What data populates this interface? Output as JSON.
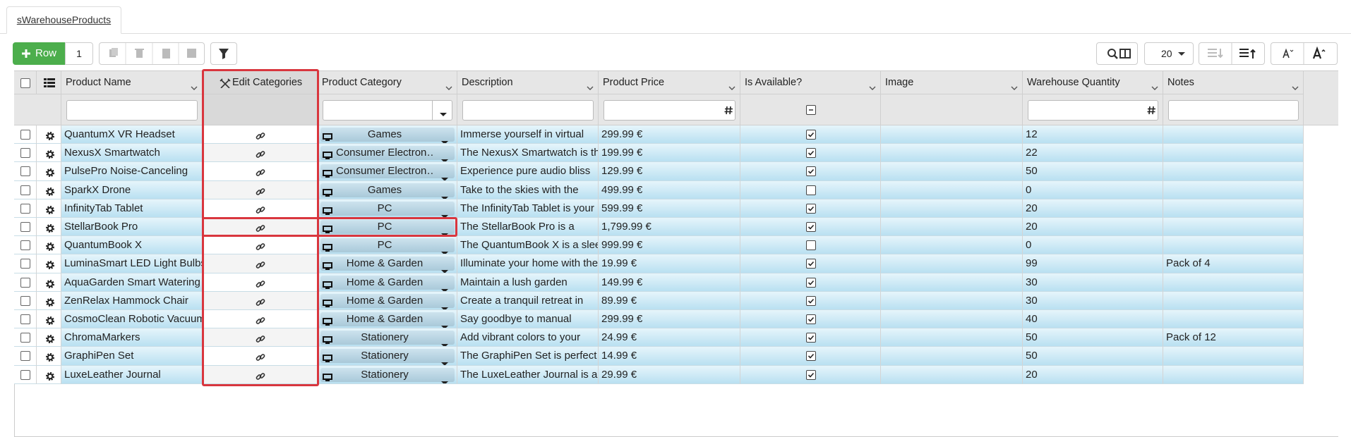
{
  "tab": "sWarehouseProducts",
  "toolbar": {
    "add_row": "Row",
    "row_count": 1,
    "page_size": 20
  },
  "columns": [
    "Product Name",
    "Edit Categories",
    "Product Category",
    "Description",
    "Product Price",
    "Is Available?",
    "Image",
    "Warehouse Quantity",
    "Notes"
  ],
  "rows": [
    {
      "name": "QuantumX VR Headset",
      "category": "Games",
      "description": "Immerse yourself in virtual",
      "price": "299.99 €",
      "available": true,
      "quantity": 12
    },
    {
      "name": "NexusX Smartwatch",
      "category": "Consumer Electron…",
      "description": "The NexusX Smartwatch is the",
      "price": "199.99 €",
      "available": true,
      "quantity": 22
    },
    {
      "name": "PulsePro Noise-Canceling",
      "category": "Consumer Electron…",
      "description": "Experience pure audio bliss",
      "price": "129.99 €",
      "available": true,
      "quantity": 50
    },
    {
      "name": "SparkX Drone",
      "category": "Games",
      "description": "Take to the skies with the",
      "price": "499.99 €",
      "available": false,
      "quantity": 0
    },
    {
      "name": "InfinityTab Tablet",
      "category": "PC",
      "description": "The InfinityTab Tablet is your",
      "price": "599.99 €",
      "available": true,
      "quantity": 20
    },
    {
      "name": "StellarBook Pro",
      "category": "PC",
      "description": "The StellarBook Pro is a",
      "price": "1,799.99 €",
      "available": true,
      "quantity": 20
    },
    {
      "name": "QuantumBook X",
      "category": "PC",
      "description": "The QuantumBook X is a sleek",
      "price": "999.99 €",
      "available": false,
      "quantity": 0
    },
    {
      "name": "LuminaSmart LED Light Bulbs",
      "category": "Home & Garden",
      "description": "Illuminate your home with the",
      "price": "19.99 €",
      "available": true,
      "quantity": 99,
      "notes": "Pack of 4"
    },
    {
      "name": "AquaGarden Smart Watering",
      "category": "Home & Garden",
      "description": "Maintain a lush garden",
      "price": "149.99 €",
      "available": true,
      "quantity": 30
    },
    {
      "name": "ZenRelax Hammock Chair",
      "category": "Home & Garden",
      "description": "Create a tranquil retreat in",
      "price": "89.99 €",
      "available": true,
      "quantity": 30
    },
    {
      "name": "CosmoClean Robotic Vacuum",
      "category": "Home & Garden",
      "description": "Say goodbye to manual",
      "price": "299.99 €",
      "available": true,
      "quantity": 40
    },
    {
      "name": "ChromaMarkers",
      "category": "Stationery",
      "description": "Add vibrant colors to your",
      "price": "24.99 €",
      "available": true,
      "quantity": 50,
      "notes": "Pack of 12"
    },
    {
      "name": "GraphiPen Set",
      "category": "Stationery",
      "description": "The GraphiPen Set is perfect",
      "price": "14.99 €",
      "available": true,
      "quantity": 50
    },
    {
      "name": "LuxeLeather Journal",
      "category": "Stationery",
      "description": "The LuxeLeather Journal is a",
      "price": "29.99 €",
      "available": true,
      "quantity": 20
    }
  ]
}
